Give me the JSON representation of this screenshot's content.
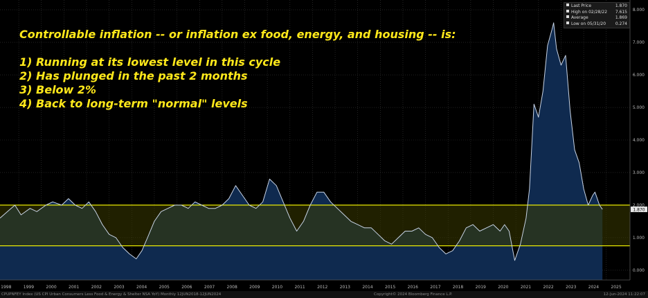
{
  "headline": {
    "lines": [
      "Controllable inflation -- or inflation ex food, energy, and housing -- is:",
      "",
      "1) Running at its lowest level in this cycle",
      "2) Has plunged in the past 2 months",
      "3) Below 2%",
      "4) Back to long-term \"normal\" levels"
    ]
  },
  "legend": {
    "rows": [
      {
        "label": "Last Price",
        "value": "1.870"
      },
      {
        "label": "High on 02/28/22",
        "value": "7.615"
      },
      {
        "label": "Average",
        "value": "1.869"
      },
      {
        "label": "Low on 05/31/20",
        "value": "0.274"
      }
    ]
  },
  "footer": {
    "left": "CPUPNFEY Index (US CPI Urban Consumers Less Food & Energy & Shelter NSA YoY)  Monthly 12JUN2018-12JUN2024",
    "center": "Copyright© 2024 Bloomberg Finance L.P.",
    "right": "12-Jun-2024 11:22:07"
  },
  "colors": {
    "background": "#000000",
    "area_fill": "#0f2a4f",
    "line": "#c8d4e6",
    "band_fill": "#3a3a00",
    "band_lines": "#ffff00",
    "last_tag_bg": "#e6e6e6"
  },
  "chart_data": {
    "type": "area",
    "title": "",
    "xlabel": "",
    "ylabel": "",
    "xlim": [
      1997.67,
      2025.55
    ],
    "ylim": [
      -0.3,
      8.3
    ],
    "y_ticks": [
      "0.000",
      "1.000",
      "2.000",
      "3.000",
      "4.000",
      "5.000",
      "6.000",
      "7.000",
      "8.000"
    ],
    "x_ticks": [
      "1998",
      "1999",
      "2000",
      "2001",
      "2002",
      "2003",
      "2004",
      "2005",
      "2006",
      "2007",
      "2008",
      "2009",
      "2010",
      "2011",
      "2012",
      "2013",
      "2014",
      "2015",
      "2016",
      "2017",
      "2018",
      "2019",
      "2020",
      "2021",
      "2022",
      "2023",
      "2024",
      "2025"
    ],
    "grid": true,
    "legend_position": "top-right",
    "reference_lines": [
      2.0,
      0.75
    ],
    "last_value_label": "1.870",
    "series": [
      {
        "x": [
          1997.67,
          1998.0,
          1998.33,
          1998.6,
          1999.0,
          1999.3,
          1999.7,
          2000.0,
          2000.4,
          2000.7,
          2001.0,
          2001.3,
          2001.6,
          2001.9,
          2002.2,
          2002.5,
          2002.8,
          2003.1,
          2003.4,
          2003.7,
          2003.95,
          2004.2,
          2004.5,
          2004.8,
          2005.1,
          2005.4,
          2005.7,
          2006.0,
          2006.3,
          2006.6,
          2006.9,
          2007.2,
          2007.5,
          2007.8,
          2008.1,
          2008.4,
          2008.7,
          2009.0,
          2009.3,
          2009.6,
          2009.9,
          2010.2,
          2010.5,
          2010.8,
          2011.1,
          2011.4,
          2011.7,
          2012.0,
          2012.3,
          2012.6,
          2012.9,
          2013.2,
          2013.5,
          2013.8,
          2014.1,
          2014.4,
          2014.7,
          2015.0,
          2015.3,
          2015.6,
          2015.9,
          2016.2,
          2016.5,
          2016.8,
          2017.1,
          2017.4,
          2017.7,
          2018.0,
          2018.3,
          2018.6,
          2018.9,
          2019.2,
          2019.5,
          2019.8,
          2020.0,
          2020.2,
          2020.45,
          2020.7,
          2020.95,
          2021.1,
          2021.3,
          2021.5,
          2021.7,
          2021.9,
          2022.1,
          2022.17,
          2022.3,
          2022.5,
          2022.7,
          2022.9,
          2023.1,
          2023.3,
          2023.5,
          2023.7,
          2023.9,
          2024.0,
          2024.1,
          2024.2,
          2024.33
        ],
        "values": [
          1.6,
          1.8,
          2.0,
          1.7,
          1.9,
          1.8,
          2.0,
          2.1,
          2.0,
          2.2,
          2.0,
          1.9,
          2.1,
          1.8,
          1.4,
          1.1,
          1.0,
          0.7,
          0.5,
          0.35,
          0.6,
          1.0,
          1.5,
          1.8,
          1.9,
          2.0,
          2.0,
          1.9,
          2.1,
          2.0,
          1.9,
          1.9,
          2.0,
          2.2,
          2.6,
          2.3,
          2.0,
          1.9,
          2.1,
          2.8,
          2.6,
          2.1,
          1.6,
          1.2,
          1.5,
          2.0,
          2.4,
          2.4,
          2.1,
          1.9,
          1.7,
          1.5,
          1.4,
          1.3,
          1.3,
          1.1,
          0.9,
          0.8,
          1.0,
          1.2,
          1.2,
          1.3,
          1.1,
          1.0,
          0.7,
          0.5,
          0.6,
          0.9,
          1.3,
          1.4,
          1.2,
          1.3,
          1.4,
          1.2,
          1.4,
          1.2,
          0.3,
          0.8,
          1.6,
          2.5,
          5.1,
          4.7,
          5.5,
          6.9,
          7.4,
          7.6,
          6.8,
          6.3,
          6.6,
          4.9,
          3.7,
          3.3,
          2.5,
          2.0,
          2.3,
          2.4,
          2.2,
          2.0,
          1.87
        ]
      }
    ]
  }
}
